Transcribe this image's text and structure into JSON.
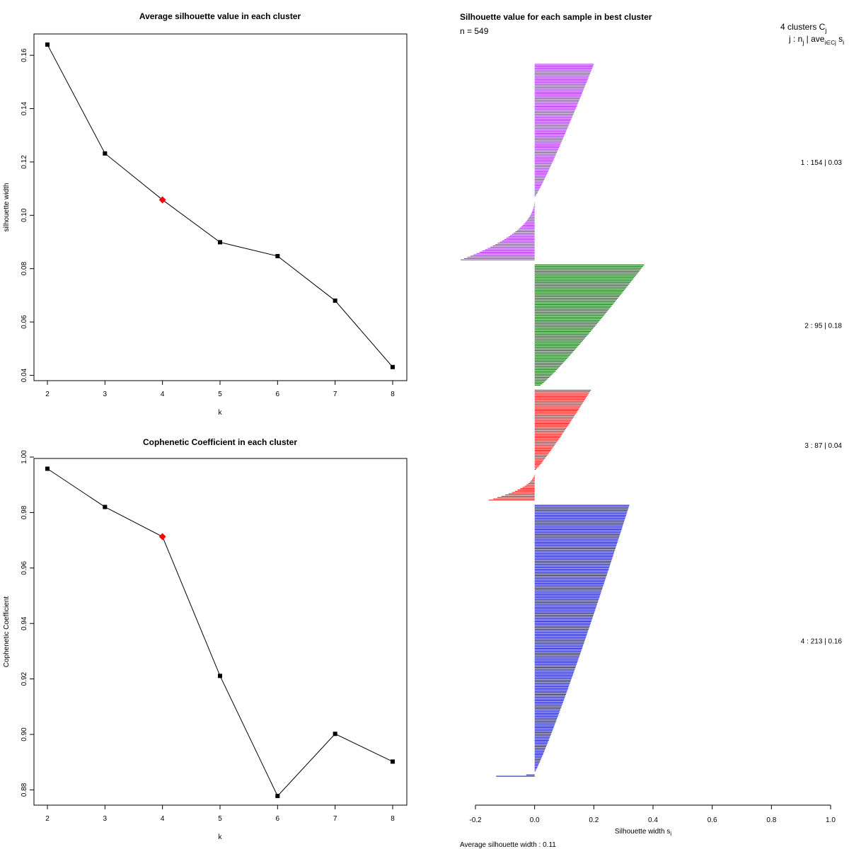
{
  "chart_data": [
    {
      "type": "line",
      "title": "Average silhouette value in each cluster",
      "xlabel": "k",
      "ylabel": "silhouette width",
      "x": [
        2,
        3,
        4,
        5,
        6,
        7,
        8
      ],
      "values": [
        0.164,
        0.1232,
        0.1058,
        0.0899,
        0.0847,
        0.068,
        0.0431
      ],
      "highlight_k": 4,
      "ylim": [
        0.038,
        0.168
      ],
      "y_ticks": [
        "0.04",
        "0.06",
        "0.08",
        "0.10",
        "0.12",
        "0.14",
        "0.16"
      ],
      "y_tick_values": [
        0.04,
        0.06,
        0.08,
        0.1,
        0.12,
        0.14,
        0.16
      ],
      "x_ticks": [
        "2",
        "3",
        "4",
        "5",
        "6",
        "7",
        "8"
      ]
    },
    {
      "type": "line",
      "title": "Cophenetic Coefficient in each cluster",
      "xlabel": "k",
      "ylabel": "Cophenetic Coefficient",
      "x": [
        2,
        3,
        4,
        5,
        6,
        7,
        8
      ],
      "values": [
        0.9958,
        0.982,
        0.9713,
        0.9211,
        0.8778,
        0.9002,
        0.8902
      ],
      "highlight_k": 4,
      "ylim": [
        0.8745,
        0.9995
      ],
      "y_ticks": [
        "0.88",
        "0.90",
        "0.92",
        "0.94",
        "0.96",
        "0.98",
        "1.00"
      ],
      "y_tick_values": [
        0.88,
        0.9,
        0.92,
        0.94,
        0.96,
        0.98,
        1.0
      ],
      "x_ticks": [
        "2",
        "3",
        "4",
        "5",
        "6",
        "7",
        "8"
      ]
    },
    {
      "type": "bar",
      "orientation": "horizontal",
      "title": "Silhouette value for each sample in best cluster",
      "n_label": "n = 549",
      "n": 549,
      "xlabel": "Silhouette width s",
      "xlabel_sub": "i",
      "xlim": [
        -0.2,
        1.0
      ],
      "x_ticks": [
        "-0.2",
        "0.0",
        "0.2",
        "0.4",
        "0.6",
        "0.8",
        "1.0"
      ],
      "x_tick_values": [
        -0.2,
        0.0,
        0.2,
        0.4,
        0.6,
        0.8,
        1.0
      ],
      "header_line1": "4 clusters C",
      "header_line1_sub": "j",
      "header_line2_j": "j :  n",
      "header_line2_nsub": "j",
      "header_line2_ave": " | ave",
      "header_line2_avesub": "i∈Cj",
      "header_line2_s": " s",
      "header_line2_ssub": "i",
      "footer": "Average silhouette width :  0.11",
      "clusters": [
        {
          "id": 1,
          "n": 154,
          "avg": 0.03,
          "label": "1 :   154  |  0.03",
          "color": "#a020f0",
          "max": 0.2,
          "min": -0.25,
          "neg_frac": 0.32,
          "bar_count": 154
        },
        {
          "id": 2,
          "n": 95,
          "avg": 0.18,
          "label": "2 :   95  |  0.18",
          "color": "#006400",
          "max": 0.37,
          "min": 0.02,
          "neg_frac": 0.0,
          "bar_count": 95
        },
        {
          "id": 3,
          "n": 87,
          "avg": 0.04,
          "label": "3 :   87  |  0.04",
          "color": "#ff0000",
          "max": 0.19,
          "min": -0.155,
          "neg_frac": 0.27,
          "bar_count": 87
        },
        {
          "id": 4,
          "n": 213,
          "avg": 0.16,
          "label": "4 :   213  |  0.16",
          "color": "#0000cd",
          "max": 0.32,
          "min": -0.13,
          "neg_frac": 0.015,
          "bar_count": 213
        }
      ]
    }
  ]
}
